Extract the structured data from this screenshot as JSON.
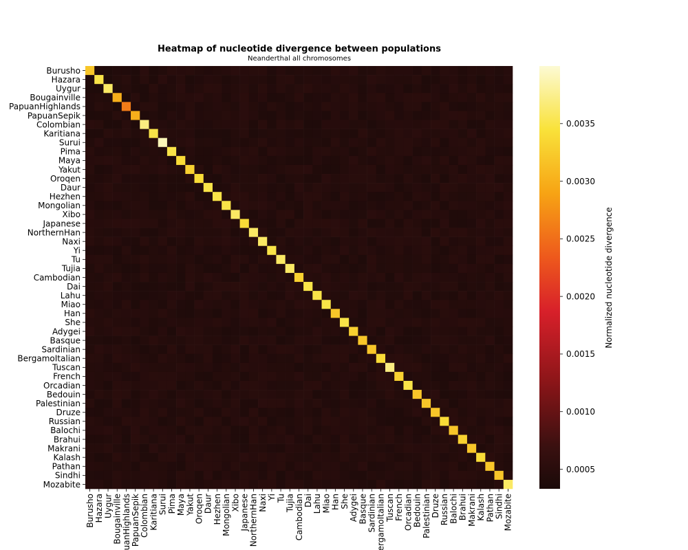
{
  "chart_data": {
    "type": "heatmap",
    "title": "Heatmap of nucleotide divergence between populations",
    "subtitle": "Neanderthal all chromosomes",
    "populations": [
      "Burusho",
      "Hazara",
      "Uygur",
      "Bougainville",
      "PapuanHighlands",
      "PapuanSepik",
      "Colombian",
      "Karitiana",
      "Surui",
      "Pima",
      "Maya",
      "Yakut",
      "Oroqen",
      "Daur",
      "Hezhen",
      "Mongolian",
      "Xibo",
      "Japanese",
      "NorthernHan",
      "Naxi",
      "Yi",
      "Tu",
      "Tujia",
      "Cambodian",
      "Dai",
      "Lahu",
      "Miao",
      "Han",
      "She",
      "Adygei",
      "Basque",
      "Sardinian",
      "BergamoItalian",
      "Tuscan",
      "French",
      "Orcadian",
      "Bedouin",
      "Palestinian",
      "Druze",
      "Russian",
      "Balochi",
      "Brahui",
      "Makrani",
      "Kalash",
      "Pathan",
      "Sindhi",
      "Mozabite"
    ],
    "diagonal_values": [
      0.0032,
      0.0035,
      0.0036,
      0.003,
      0.0026,
      0.003,
      0.0037,
      0.0035,
      0.0039,
      0.0035,
      0.0034,
      0.0033,
      0.0034,
      0.0035,
      0.0035,
      0.0035,
      0.0036,
      0.0034,
      0.0036,
      0.0036,
      0.0035,
      0.0036,
      0.0036,
      0.0033,
      0.0035,
      0.0035,
      0.0035,
      0.0032,
      0.0035,
      0.0033,
      0.0032,
      0.0032,
      0.0034,
      0.0037,
      0.0033,
      0.0035,
      0.0032,
      0.0032,
      0.0032,
      0.0034,
      0.0032,
      0.0033,
      0.0032,
      0.0034,
      0.0032,
      0.0032,
      0.0036
    ],
    "off_diagonal_approx": 0.00045,
    "colorbar": {
      "label": "Normalized nucleotide divergence",
      "vmin": 0.00033,
      "vmax": 0.004,
      "ticks": [
        0.0005,
        0.001,
        0.0015,
        0.002,
        0.0025,
        0.003,
        0.0035
      ],
      "tick_labels": [
        "0.0005",
        "0.0010",
        "0.0015",
        "0.0020",
        "0.0025",
        "0.0030",
        "0.0035"
      ],
      "colormap": "hot"
    }
  }
}
